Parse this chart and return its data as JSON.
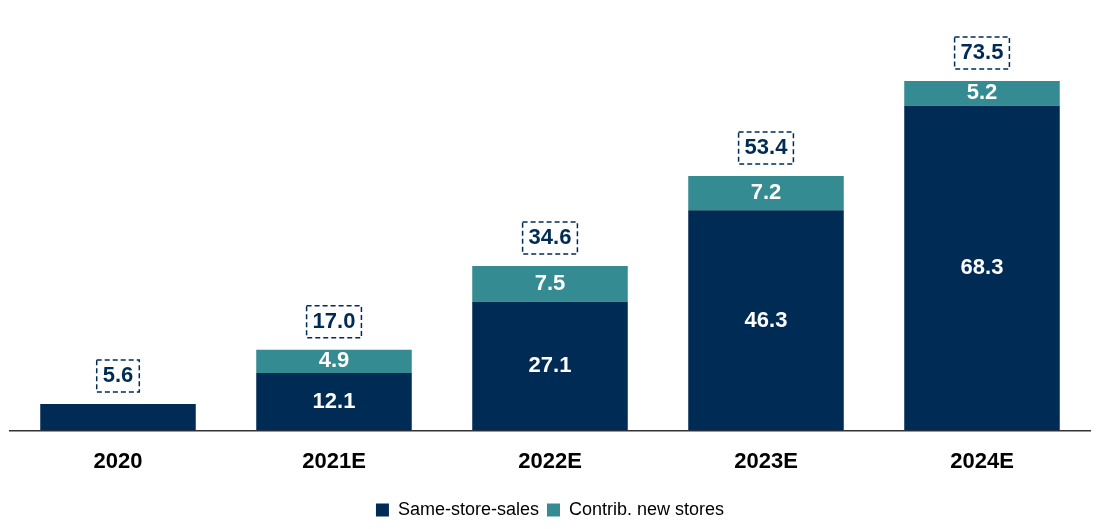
{
  "chart_data": {
    "type": "bar",
    "stacked": true,
    "categories": [
      "2020",
      "2021E",
      "2022E",
      "2023E",
      "2024E"
    ],
    "series": [
      {
        "name": "Same-store-sales",
        "color": "#002b55",
        "values": [
          5.6,
          12.1,
          27.1,
          46.3,
          68.3
        ],
        "value_labels": [
          null,
          "12.1",
          "27.1",
          "46.3",
          "68.3"
        ]
      },
      {
        "name": "Contrib. new stores",
        "color": "#358b92",
        "values": [
          null,
          4.9,
          7.5,
          7.2,
          5.2
        ],
        "value_labels": [
          null,
          "4.9",
          "7.5",
          "7.2",
          "5.2"
        ]
      }
    ],
    "totals": [
      "5.6",
      "17.0",
      "34.6",
      "53.4",
      "73.5"
    ],
    "legend": "bottom",
    "grid": false
  }
}
